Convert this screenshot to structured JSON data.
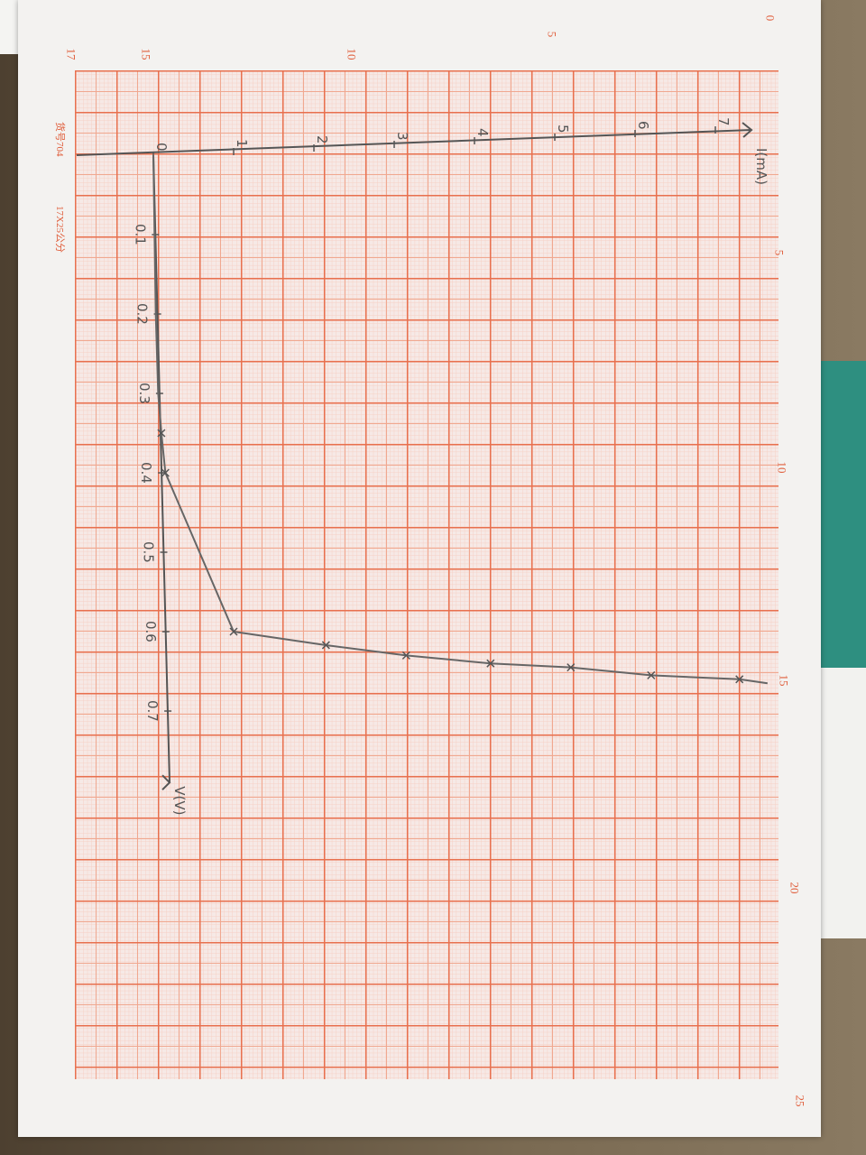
{
  "paper": {
    "product_code": "货号704",
    "size": "17X25公分",
    "top_ruler": [
      "17",
      "15",
      "10",
      "5",
      "0"
    ],
    "right_ruler": [
      "5",
      "10",
      "15",
      "20",
      "25"
    ]
  },
  "chart_data": {
    "type": "line",
    "title": "",
    "xlabel": "I(mA)",
    "ylabel": "V(V)",
    "x_ticks": [
      "0",
      "1",
      "2",
      "3",
      "4",
      "5",
      "6",
      "7"
    ],
    "y_ticks": [
      "0",
      "0.1",
      "0.2",
      "0.3",
      "0.4",
      "0.5",
      "0.6",
      "0.7"
    ],
    "xlim": [
      0,
      7.5
    ],
    "ylim": [
      0,
      0.75
    ],
    "grid": true,
    "orientation": "rotated: I axis along top edge, V axis pointing down",
    "series": [
      {
        "x": [
          0.1,
          0.15,
          1.0,
          2.15,
          3.15,
          4.2,
          5.2,
          6.2,
          7.3
        ],
        "y": [
          0.35,
          0.4,
          0.6,
          0.617,
          0.63,
          0.64,
          0.645,
          0.655,
          0.66
        ]
      }
    ],
    "colors": {
      "ink": "#555555",
      "grid": "#e8704e"
    }
  }
}
